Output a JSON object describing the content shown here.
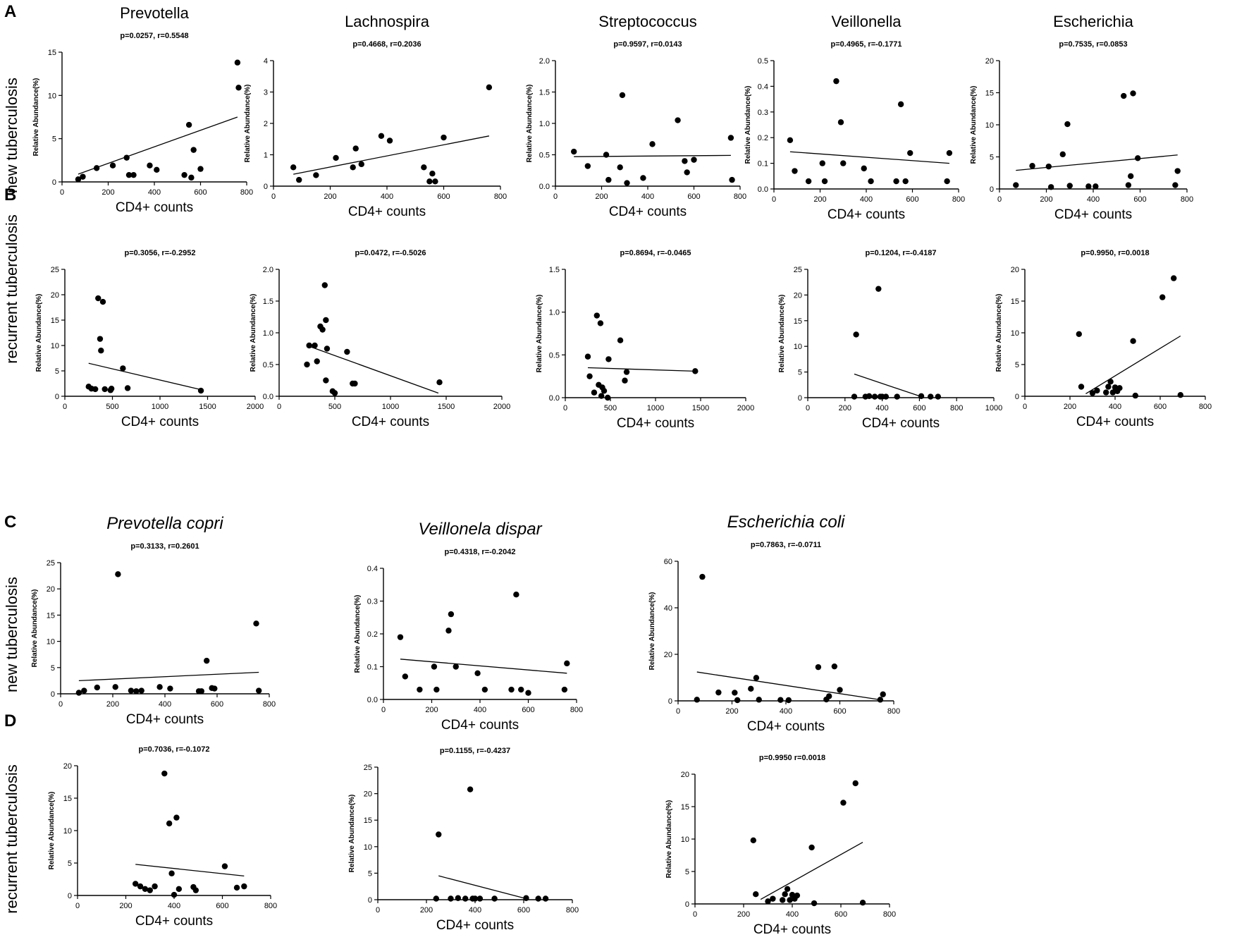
{
  "figure": {
    "panel_letters": [
      "A",
      "B",
      "C",
      "D"
    ],
    "row_labels": {
      "A": "new tuberculosis",
      "B": "recurrent tuberculosis",
      "C": "new tuberculosis",
      "D": "recurrent tuberculosis"
    }
  },
  "chart_data": [
    {
      "type": "scatter",
      "panel": "A",
      "title": "Prevotella",
      "italic": false,
      "stat": "p=0.0257, r=0.5548",
      "xlabel": "CD4+ counts",
      "ylabel": "Relative Abundance(%)",
      "xlim": [
        0,
        800
      ],
      "ylim": [
        0,
        15
      ],
      "xticks": [
        0,
        200,
        400,
        600,
        800
      ],
      "yticks": [
        0,
        5,
        10,
        15
      ],
      "x": [
        70,
        90,
        150,
        220,
        280,
        290,
        310,
        380,
        410,
        530,
        550,
        560,
        570,
        600,
        760,
        765
      ],
      "y": [
        0.3,
        0.6,
        1.6,
        1.9,
        2.8,
        0.8,
        0.8,
        1.9,
        1.4,
        0.8,
        6.6,
        0.5,
        3.7,
        1.5,
        13.8,
        10.9
      ],
      "fit": [
        [
          70,
          0.9
        ],
        [
          760,
          7.5
        ]
      ]
    },
    {
      "type": "scatter",
      "panel": "A",
      "title": "Lachnospira",
      "italic": false,
      "stat": "p=0.4668, r=0.2036",
      "xlabel": "CD4+ counts",
      "ylabel": "Relative Abundance(%)",
      "xlim": [
        0,
        800
      ],
      "ylim": [
        0,
        4
      ],
      "xticks": [
        0,
        200,
        400,
        600,
        800
      ],
      "yticks": [
        0,
        1,
        2,
        3,
        4
      ],
      "x": [
        70,
        90,
        150,
        220,
        280,
        290,
        310,
        380,
        410,
        530,
        550,
        560,
        570,
        600,
        760
      ],
      "y": [
        0.6,
        0.2,
        0.35,
        0.9,
        0.6,
        1.2,
        0.7,
        1.6,
        1.45,
        0.6,
        0.15,
        0.4,
        0.15,
        1.55,
        3.15
      ],
      "fit": [
        [
          70,
          0.38
        ],
        [
          760,
          1.6
        ]
      ]
    },
    {
      "type": "scatter",
      "panel": "A",
      "title": "Streptococcus",
      "italic": false,
      "stat": "p=0.9597, r=0.0143",
      "xlabel": "CD4+ counts",
      "ylabel": "Relative Abundance(%)",
      "xlim": [
        0,
        800
      ],
      "ylim": [
        0,
        2.0
      ],
      "xticks": [
        0,
        200,
        400,
        600,
        800
      ],
      "yticks": [
        0.0,
        0.5,
        1.0,
        1.5,
        2.0
      ],
      "x": [
        80,
        140,
        220,
        230,
        280,
        290,
        310,
        380,
        420,
        530,
        560,
        570,
        600,
        760,
        765
      ],
      "y": [
        0.55,
        0.32,
        0.5,
        0.1,
        0.3,
        1.45,
        0.05,
        0.13,
        0.67,
        1.05,
        0.4,
        0.22,
        0.42,
        0.77,
        0.1
      ],
      "fit": [
        [
          80,
          0.47
        ],
        [
          760,
          0.49
        ]
      ]
    },
    {
      "type": "scatter",
      "panel": "A",
      "title": "Veillonella",
      "italic": false,
      "stat": "p=0.4965, r=-0.1771",
      "xlabel": "CD4+ counts",
      "ylabel": "Relative Abundance(%)",
      "xlim": [
        0,
        800
      ],
      "ylim": [
        0,
        0.5
      ],
      "xticks": [
        0,
        200,
        400,
        600,
        800
      ],
      "yticks": [
        0.0,
        0.1,
        0.2,
        0.3,
        0.4,
        0.5
      ],
      "x": [
        70,
        90,
        150,
        210,
        220,
        270,
        290,
        300,
        390,
        420,
        530,
        550,
        570,
        590,
        750,
        760
      ],
      "y": [
        0.19,
        0.07,
        0.03,
        0.1,
        0.03,
        0.42,
        0.26,
        0.1,
        0.08,
        0.03,
        0.03,
        0.33,
        0.03,
        0.14,
        0.03,
        0.14
      ],
      "fit": [
        [
          70,
          0.145
        ],
        [
          760,
          0.1
        ]
      ]
    },
    {
      "type": "scatter",
      "panel": "A",
      "title": "Escherichia",
      "italic": false,
      "stat": "p=0.7535, r=0.0853",
      "xlabel": "CD4+ counts",
      "ylabel": "Relative Abundance(%)",
      "xlim": [
        0,
        800
      ],
      "ylim": [
        0,
        20
      ],
      "xticks": [
        0,
        200,
        400,
        600,
        800
      ],
      "yticks": [
        0,
        5,
        10,
        15,
        20
      ],
      "x": [
        70,
        140,
        210,
        220,
        270,
        290,
        300,
        380,
        410,
        530,
        550,
        560,
        570,
        590,
        750,
        760
      ],
      "y": [
        0.6,
        3.6,
        3.5,
        0.3,
        5.4,
        10.1,
        0.5,
        0.4,
        0.4,
        14.5,
        0.6,
        2.0,
        14.9,
        4.8,
        0.6,
        2.8
      ],
      "fit": [
        [
          70,
          2.9
        ],
        [
          760,
          5.3
        ]
      ]
    },
    {
      "type": "scatter",
      "panel": "B",
      "title": "",
      "italic": false,
      "stat": "p=0.3056, r=-0.2952",
      "xlabel": "CD4+ counts",
      "ylabel": "Relative Abundance(%)",
      "xlim": [
        0,
        2000
      ],
      "ylim": [
        0,
        25
      ],
      "xticks": [
        0,
        500,
        1000,
        1500,
        2000
      ],
      "yticks": [
        0,
        5,
        10,
        15,
        20,
        25
      ],
      "x": [
        250,
        280,
        320,
        350,
        370,
        380,
        400,
        420,
        480,
        490,
        610,
        660,
        1430
      ],
      "y": [
        1.9,
        1.5,
        1.4,
        19.3,
        11.3,
        9.0,
        18.6,
        1.4,
        1.2,
        1.5,
        5.5,
        1.6,
        1.1
      ],
      "fit": [
        [
          250,
          6.5
        ],
        [
          1430,
          1.3
        ]
      ]
    },
    {
      "type": "scatter",
      "panel": "B",
      "title": "",
      "italic": false,
      "stat": "p=0.0472, r=-0.5026",
      "xlabel": "CD4+ counts",
      "ylabel": "Relative Abundance(%)",
      "xlim": [
        0,
        2000
      ],
      "ylim": [
        0,
        2.0
      ],
      "xticks": [
        0,
        500,
        1000,
        1500,
        2000
      ],
      "yticks": [
        0.0,
        0.5,
        1.0,
        1.5,
        2.0
      ],
      "x": [
        250,
        270,
        320,
        340,
        370,
        390,
        410,
        420,
        420,
        430,
        480,
        500,
        610,
        660,
        680,
        1440
      ],
      "y": [
        0.5,
        0.8,
        0.8,
        0.55,
        1.1,
        1.05,
        1.75,
        0.25,
        1.2,
        0.75,
        0.08,
        0.05,
        0.7,
        0.2,
        0.2,
        0.22
      ],
      "fit": [
        [
          250,
          0.8
        ],
        [
          1430,
          0.05
        ]
      ]
    },
    {
      "type": "scatter",
      "panel": "B",
      "title": "",
      "italic": false,
      "stat": "p=0.8694, r=-0.0465",
      "xlabel": "CD4+ counts",
      "ylabel": "Relative Abundance(%)",
      "xlim": [
        0,
        2000
      ],
      "ylim": [
        0,
        1.5
      ],
      "xticks": [
        0,
        500,
        1000,
        1500,
        2000
      ],
      "yticks": [
        0.0,
        0.5,
        1.0,
        1.5
      ],
      "x": [
        250,
        270,
        320,
        350,
        370,
        390,
        400,
        410,
        430,
        470,
        480,
        610,
        660,
        680,
        1440
      ],
      "y": [
        0.48,
        0.25,
        0.06,
        0.96,
        0.15,
        0.87,
        0.02,
        0.12,
        0.08,
        0.0,
        0.45,
        0.67,
        0.2,
        0.3,
        0.31
      ],
      "fit": [
        [
          250,
          0.35
        ],
        [
          1430,
          0.31
        ]
      ]
    },
    {
      "type": "scatter",
      "panel": "B",
      "title": "",
      "italic": false,
      "stat": "p=0.1204, r=-0.4187",
      "xlabel": "CD4+ counts",
      "ylabel": "Relative Abundance(%)",
      "xlim": [
        0,
        1000
      ],
      "ylim": [
        0,
        25
      ],
      "xticks": [
        0,
        200,
        400,
        600,
        800,
        1000
      ],
      "yticks": [
        0,
        5,
        10,
        15,
        20,
        25
      ],
      "x": [
        250,
        260,
        310,
        330,
        360,
        380,
        390,
        400,
        420,
        480,
        610,
        660,
        700
      ],
      "y": [
        0.2,
        12.3,
        0.2,
        0.3,
        0.2,
        21.2,
        0.2,
        0.2,
        0.2,
        0.2,
        0.3,
        0.2,
        0.2
      ],
      "fit": [
        [
          250,
          4.6
        ],
        [
          610,
          0.2
        ]
      ]
    },
    {
      "type": "scatter",
      "panel": "B",
      "title": "",
      "italic": false,
      "stat": "p=0.9950, r=0.0018",
      "xlabel": "CD4+ counts",
      "ylabel": "Relative Abundance(%)",
      "xlim": [
        0,
        800
      ],
      "ylim": [
        0,
        20
      ],
      "xticks": [
        0,
        200,
        400,
        600,
        800
      ],
      "yticks": [
        0,
        5,
        10,
        15,
        20
      ],
      "x": [
        240,
        250,
        300,
        320,
        360,
        370,
        380,
        390,
        400,
        410,
        420,
        480,
        490,
        610,
        660,
        690
      ],
      "y": [
        9.8,
        1.5,
        0.5,
        0.9,
        0.6,
        1.5,
        2.3,
        0.6,
        1.4,
        0.8,
        1.3,
        8.7,
        0.1,
        15.6,
        18.6,
        0.2
      ],
      "fit": [
        [
          270,
          0.4
        ],
        [
          690,
          9.5
        ]
      ]
    },
    {
      "type": "scatter",
      "panel": "C",
      "title": "Prevotella copri",
      "italic": true,
      "stat": "p=0.3133, r=0.2601",
      "xlabel": "CD4+ counts",
      "ylabel": "Relative Abundance(%)",
      "xlim": [
        0,
        800
      ],
      "ylim": [
        0,
        25
      ],
      "xticks": [
        0,
        200,
        400,
        600,
        800
      ],
      "yticks": [
        0,
        5,
        10,
        15,
        20,
        25
      ],
      "x": [
        70,
        90,
        140,
        210,
        220,
        270,
        290,
        310,
        380,
        420,
        530,
        540,
        560,
        580,
        590,
        750,
        760
      ],
      "y": [
        0.2,
        0.6,
        1.2,
        1.3,
        22.8,
        0.6,
        0.5,
        0.6,
        1.3,
        1.0,
        0.5,
        0.5,
        6.3,
        1.1,
        1.0,
        13.4,
        0.6
      ],
      "fit": [
        [
          70,
          2.5
        ],
        [
          760,
          4.1
        ]
      ]
    },
    {
      "type": "scatter",
      "panel": "C",
      "title": "Veillonela dispar",
      "italic": true,
      "stat": "p=0.4318, r=-0.2042",
      "xlabel": "CD4+ counts",
      "ylabel": "Relative Abundance(%)",
      "xlim": [
        0,
        800
      ],
      "ylim": [
        0,
        0.4
      ],
      "xticks": [
        0,
        200,
        400,
        600,
        800
      ],
      "yticks": [
        0.0,
        0.1,
        0.2,
        0.3,
        0.4
      ],
      "x": [
        70,
        90,
        150,
        210,
        220,
        270,
        280,
        300,
        390,
        420,
        530,
        550,
        570,
        600,
        750,
        760
      ],
      "y": [
        0.19,
        0.07,
        0.03,
        0.1,
        0.03,
        0.21,
        0.26,
        0.1,
        0.08,
        0.03,
        0.03,
        0.32,
        0.03,
        0.02,
        0.03,
        0.11
      ],
      "fit": [
        [
          70,
          0.123
        ],
        [
          760,
          0.08
        ]
      ]
    },
    {
      "type": "scatter",
      "panel": "C",
      "title": "Escherichia coli",
      "italic": true,
      "stat": "p=0.7863, r=-0.0711",
      "xlabel": "CD4+ counts",
      "ylabel": "Relative Abundance(%)",
      "xlim": [
        0,
        800
      ],
      "ylim": [
        0,
        60
      ],
      "xticks": [
        0,
        200,
        400,
        600,
        800
      ],
      "yticks": [
        0,
        20,
        40,
        60
      ],
      "x": [
        70,
        90,
        150,
        210,
        220,
        270,
        290,
        300,
        380,
        410,
        520,
        550,
        560,
        580,
        600,
        750,
        760
      ],
      "y": [
        0.5,
        53.3,
        3.6,
        3.5,
        0.3,
        5.2,
        9.9,
        0.5,
        0.4,
        0.3,
        14.5,
        0.6,
        2.0,
        14.8,
        4.7,
        0.5,
        2.8
      ],
      "fit": [
        [
          70,
          12.4
        ],
        [
          760,
          0.3
        ]
      ]
    },
    {
      "type": "scatter",
      "panel": "D",
      "title": "",
      "italic": false,
      "stat": "p=0.7036, r=-0.1072",
      "xlabel": "CD4+ counts",
      "ylabel": "Relative Abundance(%)",
      "xlim": [
        0,
        800
      ],
      "ylim": [
        0,
        20
      ],
      "xticks": [
        0,
        200,
        400,
        600,
        800
      ],
      "yticks": [
        0,
        5,
        10,
        15,
        20
      ],
      "x": [
        240,
        260,
        280,
        300,
        320,
        360,
        380,
        390,
        400,
        410,
        420,
        480,
        490,
        610,
        660,
        690
      ],
      "y": [
        1.8,
        1.4,
        1.0,
        0.8,
        1.4,
        18.8,
        11.1,
        3.4,
        0.1,
        12.0,
        1.0,
        1.3,
        0.8,
        4.5,
        1.2,
        1.4
      ],
      "fit": [
        [
          240,
          4.8
        ],
        [
          690,
          3.0
        ]
      ]
    },
    {
      "type": "scatter",
      "panel": "D",
      "title": "",
      "italic": false,
      "stat": "p=0.1155, r=-0.4237",
      "xlabel": "CD4+ counts",
      "ylabel": "Relative Abundance(%)",
      "xlim": [
        0,
        800
      ],
      "ylim": [
        0,
        25
      ],
      "xticks": [
        0,
        200,
        400,
        600,
        800
      ],
      "yticks": [
        0,
        5,
        10,
        15,
        20,
        25
      ],
      "x": [
        240,
        250,
        300,
        330,
        360,
        380,
        390,
        400,
        420,
        480,
        610,
        660,
        690
      ],
      "y": [
        0.2,
        12.3,
        0.2,
        0.3,
        0.2,
        20.8,
        0.2,
        0.2,
        0.2,
        0.2,
        0.3,
        0.2,
        0.2
      ],
      "fit": [
        [
          250,
          4.5
        ],
        [
          610,
          0.2
        ]
      ]
    },
    {
      "type": "scatter",
      "panel": "D",
      "title": "",
      "italic": false,
      "stat": "p=0.9950 r=0.0018",
      "xlabel": "CD4+ counts",
      "ylabel": "Relative Abundance(%)",
      "xlim": [
        0,
        800
      ],
      "ylim": [
        0,
        20
      ],
      "xticks": [
        0,
        200,
        400,
        600,
        800
      ],
      "yticks": [
        0,
        5,
        10,
        15,
        20
      ],
      "x": [
        240,
        250,
        300,
        320,
        360,
        370,
        380,
        390,
        400,
        410,
        420,
        480,
        490,
        610,
        660,
        690
      ],
      "y": [
        9.8,
        1.5,
        0.4,
        0.8,
        0.6,
        1.5,
        2.3,
        0.6,
        1.4,
        0.8,
        1.3,
        8.7,
        0.1,
        15.6,
        18.6,
        0.2
      ],
      "fit": [
        [
          270,
          0.7
        ],
        [
          690,
          9.5
        ]
      ]
    }
  ]
}
